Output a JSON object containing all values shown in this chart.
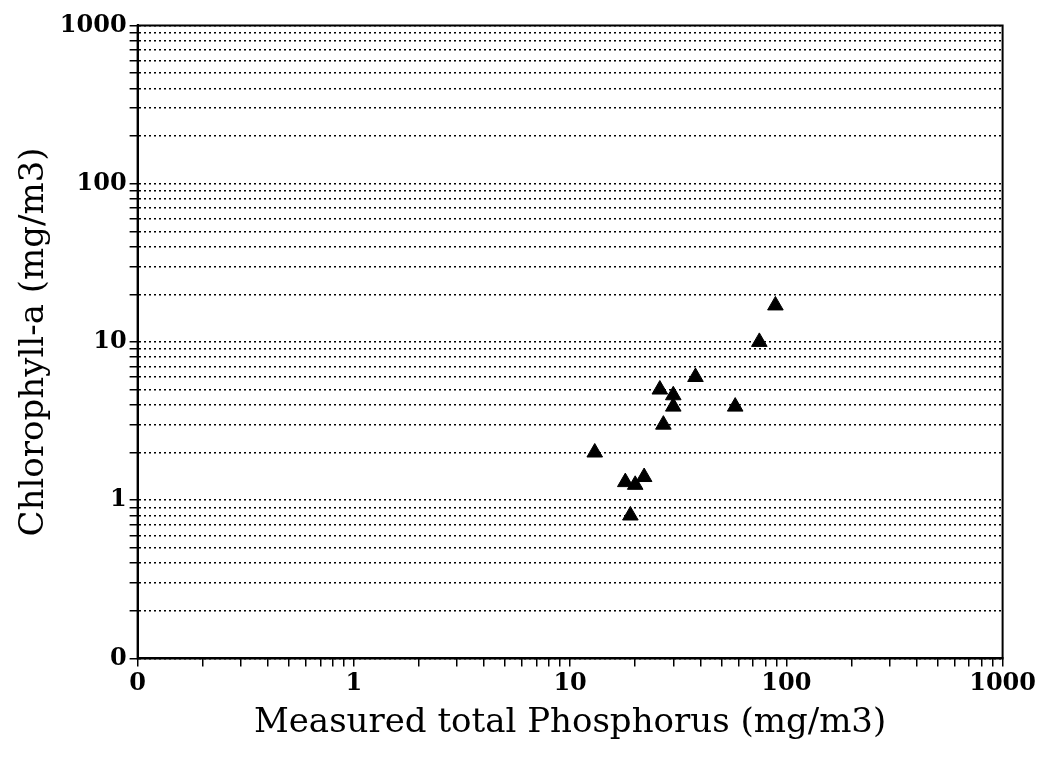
{
  "chart_data": {
    "type": "scatter",
    "xlabel": "Measured total Phosphorus (mg/m3)",
    "ylabel": "Chlorophyll-a (mg/m3)",
    "x": [
      89,
      75,
      38,
      26,
      30,
      30,
      58,
      27,
      13,
      18,
      20,
      22,
      19
    ],
    "series": [
      {
        "color": "#000000",
        "values": [
          17,
          10,
          6,
          5,
          4.6,
          3.9,
          3.9,
          3,
          2,
          1.3,
          1.25,
          1.4,
          0.8
        ]
      }
    ],
    "marker": "triangle",
    "log": "xy",
    "grid": "y",
    "legend": false,
    "xlim": [
      0.1,
      1000
    ],
    "ylim": [
      0.1,
      1000
    ],
    "xticks": [
      {
        "value": 0.1,
        "label": "0"
      },
      {
        "value": 0.2,
        "label": null
      },
      {
        "value": 0.3,
        "label": null
      },
      {
        "value": 0.4,
        "label": null
      },
      {
        "value": 0.5,
        "label": null
      },
      {
        "value": 0.6,
        "label": null
      },
      {
        "value": 0.7,
        "label": null
      },
      {
        "value": 0.8,
        "label": null
      },
      {
        "value": 0.9,
        "label": null
      },
      1,
      {
        "value": 2,
        "label": null
      },
      {
        "value": 3,
        "label": null
      },
      {
        "value": 4,
        "label": null
      },
      {
        "value": 5,
        "label": null
      },
      {
        "value": 6,
        "label": null
      },
      {
        "value": 7,
        "label": null
      },
      {
        "value": 8,
        "label": null
      },
      {
        "value": 9,
        "label": null
      },
      10,
      {
        "value": 20,
        "label": null
      },
      {
        "value": 30,
        "label": null
      },
      {
        "value": 40,
        "label": null
      },
      {
        "value": 50,
        "label": null
      },
      {
        "value": 60,
        "label": null
      },
      {
        "value": 70,
        "label": null
      },
      {
        "value": 80,
        "label": null
      },
      {
        "value": 90,
        "label": null
      },
      100,
      {
        "value": 200,
        "label": null
      },
      {
        "value": 300,
        "label": null
      },
      {
        "value": 400,
        "label": null
      },
      {
        "value": 500,
        "label": null
      },
      {
        "value": 600,
        "label": null
      },
      {
        "value": 700,
        "label": null
      },
      {
        "value": 800,
        "label": null
      },
      {
        "value": 900,
        "label": null
      },
      1000
    ],
    "yticks": [
      {
        "value": 0.1,
        "label": "0"
      },
      {
        "value": 0.2,
        "label": null
      },
      {
        "value": 0.3,
        "label": null
      },
      {
        "value": 0.4,
        "label": null
      },
      {
        "value": 0.5,
        "label": null
      },
      {
        "value": 0.6,
        "label": null
      },
      {
        "value": 0.7,
        "label": null
      },
      {
        "value": 0.8,
        "label": null
      },
      {
        "value": 0.9,
        "label": null
      },
      1,
      {
        "value": 2,
        "label": null
      },
      {
        "value": 3,
        "label": null
      },
      {
        "value": 4,
        "label": null
      },
      {
        "value": 5,
        "label": null
      },
      {
        "value": 6,
        "label": null
      },
      {
        "value": 7,
        "label": null
      },
      {
        "value": 8,
        "label": null
      },
      {
        "value": 9,
        "label": null
      },
      10,
      {
        "value": 20,
        "label": null
      },
      {
        "value": 30,
        "label": null
      },
      {
        "value": 40,
        "label": null
      },
      {
        "value": 50,
        "label": null
      },
      {
        "value": 60,
        "label": null
      },
      {
        "value": 70,
        "label": null
      },
      {
        "value": 80,
        "label": null
      },
      {
        "value": 90,
        "label": null
      },
      100,
      {
        "value": 200,
        "label": null
      },
      {
        "value": 300,
        "label": null
      },
      {
        "value": 400,
        "label": null
      },
      {
        "value": 500,
        "label": null
      },
      {
        "value": 600,
        "label": null
      },
      {
        "value": 700,
        "label": null
      },
      {
        "value": 800,
        "label": null
      },
      {
        "value": 900,
        "label": null
      },
      1000
    ]
  }
}
